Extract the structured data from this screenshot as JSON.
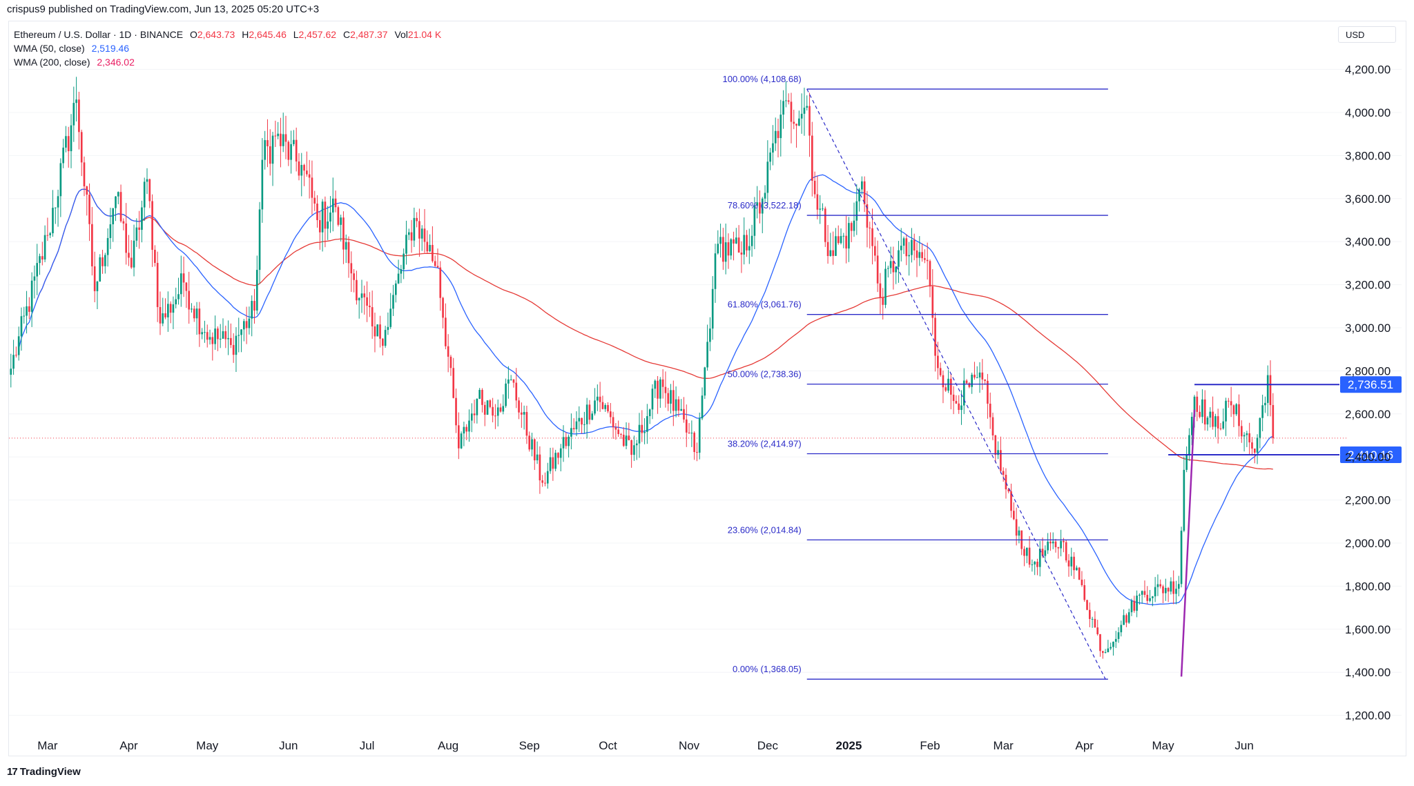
{
  "header": {
    "published_text": "crispus9 published on TradingView.com, Jun 13, 2025 05:20 UTC+3"
  },
  "legend": {
    "symbol": "Ethereum / U.S. Dollar · 1D · BINANCE",
    "open_label": "O",
    "open": "2,643.73",
    "high_label": "H",
    "high": "2,645.46",
    "low_label": "L",
    "low": "2,457.62",
    "close_label": "C",
    "close": "2,487.37",
    "vol_label": "Vol",
    "vol": "21.04 K",
    "wma50_label": "WMA (50, close)",
    "wma50_value": "2,519.46",
    "wma200_label": "WMA (200, close)",
    "wma200_value": "2,346.02"
  },
  "currency_button": "USD",
  "footer": {
    "logo_icon": "17",
    "logo_text": "TradingView"
  },
  "colors": {
    "up": "#089981",
    "down": "#f23645",
    "wma50": "#2962ff",
    "wma200": "#e53935",
    "fib": "#2a2ac8",
    "impulse": "#9c27b0",
    "axis_text": "#131722"
  },
  "chart_data": {
    "type": "candlestick",
    "x_axis": {
      "ticks": [
        "Mar",
        "Apr",
        "May",
        "Jun",
        "Jul",
        "Aug",
        "Sep",
        "Oct",
        "Nov",
        "Dec",
        "2025",
        "Feb",
        "Mar",
        "Apr",
        "May",
        "Jun"
      ],
      "bold_tick": "2025",
      "range": [
        "2024-02-15",
        "2025-07-10"
      ]
    },
    "y_axis": {
      "ticks": [
        "1,200.00",
        "1,400.00",
        "1,600.00",
        "1,800.00",
        "2,000.00",
        "2,200.00",
        "2,400.00",
        "2,600.00",
        "2,800.00",
        "3,000.00",
        "3,200.00",
        "3,400.00",
        "3,600.00",
        "3,800.00",
        "4,000.00",
        "4,200.00"
      ],
      "range": [
        1125,
        4330
      ],
      "currency": "USD"
    },
    "fibonacci": {
      "start": [
        "2024-12-16",
        4108.68
      ],
      "end": [
        "2025-04-09",
        1368.05
      ],
      "levels": [
        {
          "label": "100.00% (4,108.68)",
          "value": 4108.68
        },
        {
          "label": "78.60% (3,522.18)",
          "value": 3522.18
        },
        {
          "label": "61.80% (3,061.76)",
          "value": 3061.76
        },
        {
          "label": "50.00% (2,738.36)",
          "value": 2738.36
        },
        {
          "label": "38.20% (2,414.97)",
          "value": 2414.97
        },
        {
          "label": "23.60% (2,014.84)",
          "value": 2014.84
        },
        {
          "label": "0.00% (1,368.05)",
          "value": 1368.05
        }
      ],
      "extend_to": "2025-04-10"
    },
    "horizontal_levels": [
      {
        "label": "2,736.51",
        "value": 2736.51,
        "from": "2025-05-13"
      },
      {
        "label": "2,410.16",
        "value": 2410.16,
        "from": "2025-05-03"
      }
    ],
    "impulse_line": {
      "from": [
        "2025-05-08",
        1380
      ],
      "to": [
        "2025-05-13",
        2620
      ]
    },
    "last_price": 2487.37,
    "series": [
      {
        "name": "ETHUSD",
        "kind": "ohlc",
        "start": "2024-02-16",
        "interval": "1D",
        "anchors": [
          [
            "2024-02-16",
            2810
          ],
          [
            "2024-03-01",
            3430
          ],
          [
            "2024-03-12",
            4060
          ],
          [
            "2024-03-19",
            3170
          ],
          [
            "2024-03-27",
            3610
          ],
          [
            "2024-04-02",
            3280
          ],
          [
            "2024-04-08",
            3690
          ],
          [
            "2024-04-13",
            3020
          ],
          [
            "2024-04-22",
            3210
          ],
          [
            "2024-04-30",
            2980
          ],
          [
            "2024-05-10",
            2920
          ],
          [
            "2024-05-19",
            3080
          ],
          [
            "2024-05-22",
            3780
          ],
          [
            "2024-05-27",
            3890
          ],
          [
            "2024-06-07",
            3730
          ],
          [
            "2024-06-12",
            3500
          ],
          [
            "2024-06-19",
            3560
          ],
          [
            "2024-06-24",
            3300
          ],
          [
            "2024-07-04",
            2960
          ],
          [
            "2024-07-08",
            2990
          ],
          [
            "2024-07-19",
            3510
          ],
          [
            "2024-07-28",
            3280
          ],
          [
            "2024-08-05",
            2440
          ],
          [
            "2024-08-12",
            2670
          ],
          [
            "2024-08-20",
            2630
          ],
          [
            "2024-08-25",
            2760
          ],
          [
            "2024-09-06",
            2280
          ],
          [
            "2024-09-13",
            2440
          ],
          [
            "2024-09-27",
            2680
          ],
          [
            "2024-10-10",
            2410
          ],
          [
            "2024-10-21",
            2760
          ],
          [
            "2024-11-04",
            2420
          ],
          [
            "2024-11-10",
            3180
          ],
          [
            "2024-11-12",
            3390
          ],
          [
            "2024-11-21",
            3340
          ],
          [
            "2024-11-29",
            3600
          ],
          [
            "2024-12-06",
            3990
          ],
          [
            "2024-12-16",
            4030
          ],
          [
            "2024-12-19",
            3620
          ],
          [
            "2024-12-25",
            3360
          ],
          [
            "2025-01-02",
            3450
          ],
          [
            "2025-01-06",
            3680
          ],
          [
            "2025-01-13",
            3140
          ],
          [
            "2025-01-20",
            3360
          ],
          [
            "2025-01-31",
            3310
          ],
          [
            "2025-02-03",
            2870
          ],
          [
            "2025-02-10",
            2660
          ],
          [
            "2025-02-21",
            2760
          ],
          [
            "2025-02-25",
            2500
          ],
          [
            "2025-03-04",
            2150
          ],
          [
            "2025-03-11",
            1900
          ],
          [
            "2025-03-23",
            2010
          ],
          [
            "2025-03-30",
            1830
          ],
          [
            "2025-04-08",
            1490
          ],
          [
            "2025-04-15",
            1620
          ],
          [
            "2025-04-22",
            1760
          ],
          [
            "2025-05-07",
            1810
          ],
          [
            "2025-05-09",
            2340
          ],
          [
            "2025-05-13",
            2680
          ],
          [
            "2025-05-20",
            2540
          ],
          [
            "2025-05-27",
            2640
          ],
          [
            "2025-06-05",
            2420
          ],
          [
            "2025-06-10",
            2780
          ],
          [
            "2025-06-12",
            2487.37
          ]
        ]
      },
      {
        "name": "WMA (50, close)",
        "kind": "line",
        "derived_from": "ETHUSD"
      },
      {
        "name": "WMA (200, close)",
        "kind": "line",
        "derived_from": "ETHUSD"
      }
    ]
  }
}
